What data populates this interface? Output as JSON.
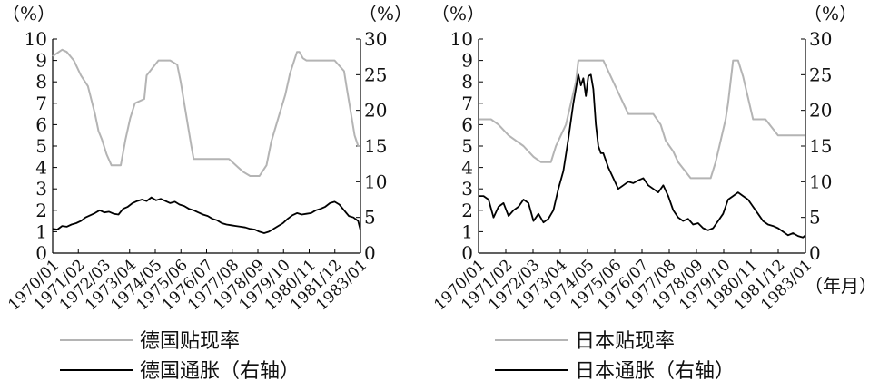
{
  "chart_data": [
    {
      "type": "line",
      "left_unit": "（%）",
      "right_unit": "（%）",
      "x_unit": "",
      "ylim_left": [
        0,
        10
      ],
      "ylim_right": [
        0,
        30
      ],
      "yticks_left": [
        "0",
        "1",
        "2",
        "3",
        "4",
        "5",
        "6",
        "7",
        "8",
        "9",
        "10"
      ],
      "yticks_right": [
        "0",
        "5",
        "10",
        "15",
        "20",
        "25",
        "30"
      ],
      "categories": [
        "1970/01",
        "1971/02",
        "1972/03",
        "1973/04",
        "1974/05",
        "1975/06",
        "1976/07",
        "1977/08",
        "1978/09",
        "1979/10",
        "1980/11",
        "1981/12",
        "1983/01"
      ],
      "grid": false,
      "legend_position": "bottom",
      "series": [
        {
          "name": "德国贴现率",
          "axis": "left",
          "color": "#b4b4b4",
          "x": [
            1970.0,
            1970.4,
            1970.6,
            1970.9,
            1971.2,
            1971.5,
            1971.8,
            1971.95,
            1972.1,
            1972.3,
            1972.5,
            1972.9,
            1973.1,
            1973.3,
            1973.5,
            1973.9,
            1974.0,
            1974.5,
            1975.0,
            1975.3,
            1975.45,
            1975.6,
            1975.75,
            1975.9,
            1976.0,
            1976.5,
            1977.0,
            1977.5,
            1977.9,
            1978.1,
            1978.4,
            1978.8,
            1979.1,
            1979.3,
            1979.6,
            1979.9,
            1980.1,
            1980.4,
            1980.5,
            1980.65,
            1980.8,
            1981.0,
            1981.5,
            1982.0,
            1982.4,
            1982.5,
            1982.7,
            1982.85,
            1983.0,
            1983.1
          ],
          "y": [
            9.2,
            9.5,
            9.4,
            9.0,
            8.3,
            7.8,
            6.5,
            5.7,
            5.3,
            4.6,
            4.1,
            4.1,
            5.3,
            6.3,
            7.0,
            7.2,
            8.3,
            9.0,
            9.0,
            8.8,
            8.0,
            7.0,
            6.0,
            5.0,
            4.4,
            4.4,
            4.4,
            4.4,
            4.0,
            3.8,
            3.6,
            3.6,
            4.1,
            5.2,
            6.3,
            7.4,
            8.4,
            9.4,
            9.4,
            9.1,
            9.0,
            9.0,
            9.0,
            9.0,
            8.5,
            7.8,
            6.5,
            5.5,
            5.0,
            5.0
          ]
        },
        {
          "name": "德国通胀（右轴）",
          "axis": "right",
          "color": "#000000",
          "x": [
            1970.0,
            1970.2,
            1970.4,
            1970.6,
            1970.8,
            1971.0,
            1971.2,
            1971.4,
            1971.6,
            1971.8,
            1972.0,
            1972.2,
            1972.4,
            1972.6,
            1972.8,
            1973.0,
            1973.2,
            1973.4,
            1973.6,
            1973.8,
            1974.0,
            1974.2,
            1974.4,
            1974.6,
            1974.8,
            1975.0,
            1975.2,
            1975.4,
            1975.6,
            1975.8,
            1976.0,
            1976.2,
            1976.4,
            1976.6,
            1976.8,
            1977.0,
            1977.2,
            1977.4,
            1977.6,
            1977.8,
            1978.0,
            1978.2,
            1978.4,
            1978.6,
            1978.8,
            1979.0,
            1979.2,
            1979.4,
            1979.6,
            1979.8,
            1980.0,
            1980.2,
            1980.4,
            1980.6,
            1980.8,
            1981.0,
            1981.2,
            1981.4,
            1981.6,
            1981.8,
            1982.0,
            1982.2,
            1982.4,
            1982.6,
            1982.8,
            1983.0,
            1983.1
          ],
          "y": [
            3.4,
            3.3,
            3.8,
            3.7,
            4.0,
            4.2,
            4.5,
            5.0,
            5.3,
            5.6,
            6.0,
            5.7,
            5.8,
            5.5,
            5.4,
            6.2,
            6.5,
            7.0,
            7.3,
            7.5,
            7.3,
            7.8,
            7.4,
            7.6,
            7.3,
            7.0,
            7.2,
            6.8,
            6.6,
            6.2,
            6.0,
            5.7,
            5.4,
            5.2,
            4.8,
            4.6,
            4.2,
            4.0,
            3.9,
            3.8,
            3.7,
            3.6,
            3.4,
            3.3,
            3.0,
            2.8,
            3.0,
            3.4,
            3.8,
            4.2,
            4.8,
            5.3,
            5.6,
            5.4,
            5.5,
            5.6,
            6.0,
            6.2,
            6.5,
            7.0,
            7.2,
            6.8,
            6.0,
            5.2,
            5.0,
            4.5,
            3.2
          ]
        }
      ]
    },
    {
      "type": "line",
      "left_unit": "（%）",
      "right_unit": "（%）",
      "x_unit": "（年月）",
      "ylim_left": [
        0,
        10
      ],
      "ylim_right": [
        0,
        30
      ],
      "yticks_left": [
        "0",
        "1",
        "2",
        "3",
        "4",
        "5",
        "6",
        "7",
        "8",
        "9",
        "10"
      ],
      "yticks_right": [
        "0",
        "5",
        "10",
        "15",
        "20",
        "25",
        "30"
      ],
      "categories": [
        "1970/01",
        "1971/02",
        "1972/03",
        "1973/04",
        "1974/05",
        "1975/06",
        "1976/07",
        "1977/08",
        "1978/09",
        "1979/10",
        "1980/11",
        "1981/12",
        "1983/01"
      ],
      "grid": false,
      "legend_position": "bottom",
      "series": [
        {
          "name": "日本贴现率",
          "axis": "left",
          "color": "#b4b4b4",
          "x": [
            1970.0,
            1970.5,
            1970.8,
            1971.0,
            1971.2,
            1971.5,
            1971.8,
            1972.0,
            1972.2,
            1972.5,
            1972.9,
            1973.1,
            1973.3,
            1973.5,
            1973.7,
            1973.9,
            1974.0,
            1974.5,
            1975.0,
            1975.2,
            1975.4,
            1975.6,
            1975.8,
            1976.0,
            1976.5,
            1977.0,
            1977.3,
            1977.5,
            1977.8,
            1978.0,
            1978.5,
            1979.0,
            1979.3,
            1979.5,
            1979.7,
            1979.9,
            1980.0,
            1980.2,
            1980.4,
            1980.6,
            1980.8,
            1981.0,
            1981.5,
            1982.0,
            1983.0,
            1983.1
          ],
          "y": [
            6.25,
            6.25,
            6.0,
            5.75,
            5.5,
            5.25,
            5.0,
            4.75,
            4.5,
            4.25,
            4.25,
            5.0,
            5.5,
            6.0,
            7.0,
            8.0,
            9.0,
            9.0,
            9.0,
            8.5,
            8.0,
            7.5,
            7.0,
            6.5,
            6.5,
            6.5,
            6.0,
            5.25,
            4.75,
            4.25,
            3.5,
            3.5,
            3.5,
            4.25,
            5.25,
            6.25,
            7.0,
            9.0,
            9.0,
            8.25,
            7.25,
            6.25,
            6.25,
            5.5,
            5.5,
            5.5
          ]
        },
        {
          "name": "日本通胀（右轴）",
          "axis": "right",
          "color": "#000000",
          "x": [
            1970.0,
            1970.2,
            1970.4,
            1970.6,
            1970.8,
            1971.0,
            1971.2,
            1971.4,
            1971.6,
            1971.8,
            1972.0,
            1972.2,
            1972.4,
            1972.6,
            1972.8,
            1973.0,
            1973.2,
            1973.4,
            1973.6,
            1973.8,
            1974.0,
            1974.1,
            1974.2,
            1974.3,
            1974.4,
            1974.5,
            1974.6,
            1974.7,
            1974.8,
            1974.9,
            1975.0,
            1975.2,
            1975.4,
            1975.6,
            1975.8,
            1976.0,
            1976.2,
            1976.4,
            1976.6,
            1976.8,
            1977.0,
            1977.2,
            1977.4,
            1977.6,
            1977.8,
            1978.0,
            1978.2,
            1978.4,
            1978.6,
            1978.8,
            1979.0,
            1979.2,
            1979.4,
            1979.6,
            1979.8,
            1980.0,
            1980.2,
            1980.4,
            1980.6,
            1980.8,
            1981.0,
            1981.2,
            1981.4,
            1981.6,
            1981.8,
            1982.0,
            1982.2,
            1982.4,
            1982.6,
            1982.8,
            1983.0,
            1983.1
          ],
          "y": [
            8.0,
            8.0,
            7.5,
            5.0,
            6.5,
            7.0,
            5.2,
            6.0,
            6.5,
            7.5,
            7.0,
            4.5,
            5.5,
            4.3,
            4.8,
            6.0,
            9.0,
            11.5,
            16.0,
            21.0,
            25.0,
            23.5,
            24.5,
            22.0,
            24.8,
            25.0,
            23.0,
            18.0,
            15.0,
            14.0,
            14.0,
            12.0,
            10.5,
            9.0,
            9.5,
            10.0,
            9.8,
            10.2,
            10.5,
            9.5,
            9.0,
            8.5,
            9.5,
            8.0,
            6.0,
            5.0,
            4.5,
            4.8,
            4.0,
            4.2,
            3.5,
            3.2,
            3.5,
            4.5,
            5.5,
            7.5,
            8.0,
            8.5,
            8.0,
            7.5,
            6.5,
            5.5,
            4.5,
            4.0,
            3.8,
            3.5,
            3.0,
            2.5,
            2.8,
            2.4,
            2.2,
            2.5
          ]
        }
      ]
    }
  ]
}
